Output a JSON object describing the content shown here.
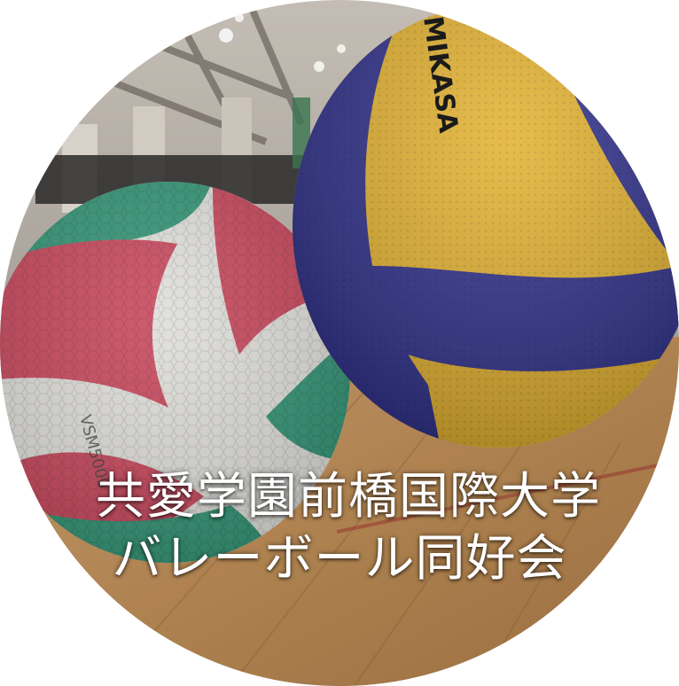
{
  "photo": {
    "subject": "two volleyballs on gym floor",
    "ball_left_brand_text": "VSM5000",
    "ball_right_brand_text": "MIKASA"
  },
  "caption": {
    "line1": "共愛学園前橋国際大学",
    "line2": "バレーボール同好会"
  },
  "colors": {
    "ball_left_green": "#2f9a78",
    "ball_left_red": "#d2455c",
    "ball_left_white": "#ecebe6",
    "ball_right_yellow": "#f0b92a",
    "ball_right_blue": "#2a2b8e",
    "floor": "#b98a55",
    "caption_text": "#ffffff"
  }
}
